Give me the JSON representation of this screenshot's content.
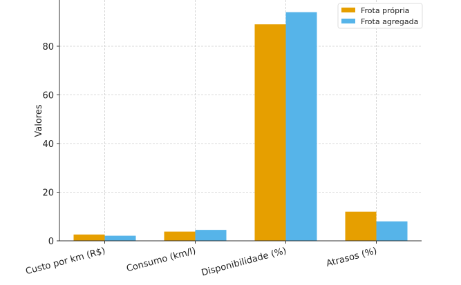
{
  "chart_data": {
    "type": "bar",
    "title": "",
    "xlabel": "",
    "ylabel": "Valores",
    "ylim": [
      0,
      99
    ],
    "yticks": [
      0,
      20,
      40,
      60,
      80
    ],
    "grid": true,
    "legend_position": "top-right",
    "categories": [
      "Custo por km (R$)",
      "Consumo (km/l)",
      "Disponibilidade (%)",
      "Atrasos (%)"
    ],
    "series": [
      {
        "name": "Frota própria",
        "color": "#E69F00",
        "values": [
          2.6,
          3.8,
          89,
          12
        ]
      },
      {
        "name": "Frota agregada",
        "color": "#56B4E9",
        "values": [
          2.1,
          4.5,
          94,
          8
        ]
      }
    ]
  }
}
